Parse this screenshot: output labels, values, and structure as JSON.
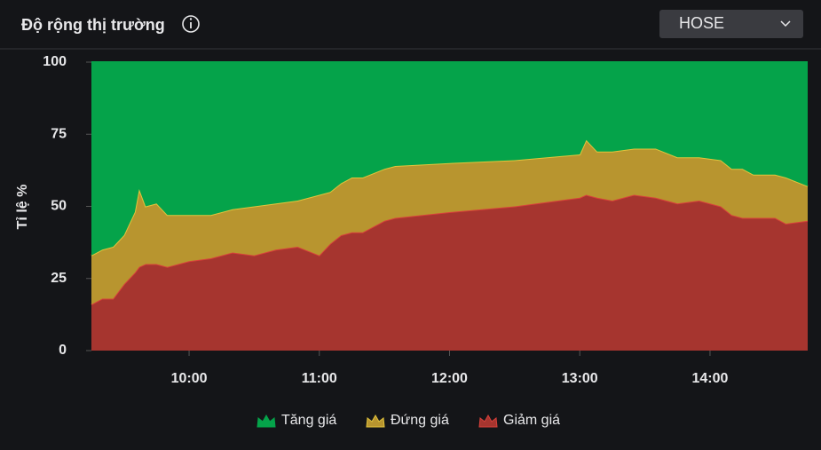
{
  "header": {
    "title": "Độ rộng thị trường",
    "exchange": "HOSE"
  },
  "chart_data": {
    "type": "stacked-area",
    "y_label": "Tỉ lệ %",
    "x": [
      "09:15",
      "09:20",
      "09:25",
      "09:30",
      "09:35",
      "09:37",
      "09:40",
      "09:45",
      "09:50",
      "10:00",
      "10:10",
      "10:20",
      "10:30",
      "10:40",
      "10:50",
      "11:00",
      "11:05",
      "11:10",
      "11:15",
      "11:20",
      "11:30",
      "11:35",
      "12:00",
      "12:30",
      "13:00",
      "13:03",
      "13:08",
      "13:15",
      "13:25",
      "13:35",
      "13:45",
      "13:55",
      "14:05",
      "14:10",
      "14:15",
      "14:20",
      "14:30",
      "14:35",
      "14:45"
    ],
    "xlim": [
      "09:15",
      "14:45"
    ],
    "xticks": [
      "10:00",
      "11:00",
      "12:00",
      "13:00",
      "14:00"
    ],
    "ylim": [
      0,
      100
    ],
    "yticks": [
      0,
      25,
      50,
      75,
      100
    ],
    "series": [
      {
        "name": "Tăng giá",
        "color": "#05a34a",
        "line": "#05a34a",
        "values": [
          67,
          65,
          64,
          60,
          52,
          44,
          50,
          49,
          53,
          53,
          53,
          51,
          50,
          49,
          48,
          46,
          45,
          42,
          40,
          40,
          37,
          36,
          35,
          34,
          32,
          27,
          31,
          31,
          30,
          30,
          33,
          33,
          34,
          37,
          37,
          39,
          39,
          40,
          43
        ]
      },
      {
        "name": "Đứng giá",
        "color": "#b8952f",
        "line": "#e3c43c",
        "values": [
          17,
          17,
          18,
          17,
          21,
          27,
          20,
          21,
          18,
          16,
          15,
          15,
          17,
          16,
          16,
          21,
          18,
          18,
          19,
          19,
          18,
          18,
          17,
          16,
          15,
          19,
          16,
          17,
          16,
          17,
          16,
          15,
          16,
          16,
          17,
          15,
          15,
          16,
          12
        ]
      },
      {
        "name": "Giảm giá",
        "color": "#a6352f",
        "line": "#d8403a",
        "values": [
          16,
          18,
          18,
          23,
          27,
          29,
          30,
          30,
          29,
          31,
          32,
          34,
          33,
          35,
          36,
          33,
          37,
          40,
          41,
          41,
          45,
          46,
          48,
          50,
          53,
          54,
          53,
          52,
          54,
          53,
          51,
          52,
          50,
          47,
          46,
          46,
          46,
          44,
          45
        ]
      }
    ]
  }
}
